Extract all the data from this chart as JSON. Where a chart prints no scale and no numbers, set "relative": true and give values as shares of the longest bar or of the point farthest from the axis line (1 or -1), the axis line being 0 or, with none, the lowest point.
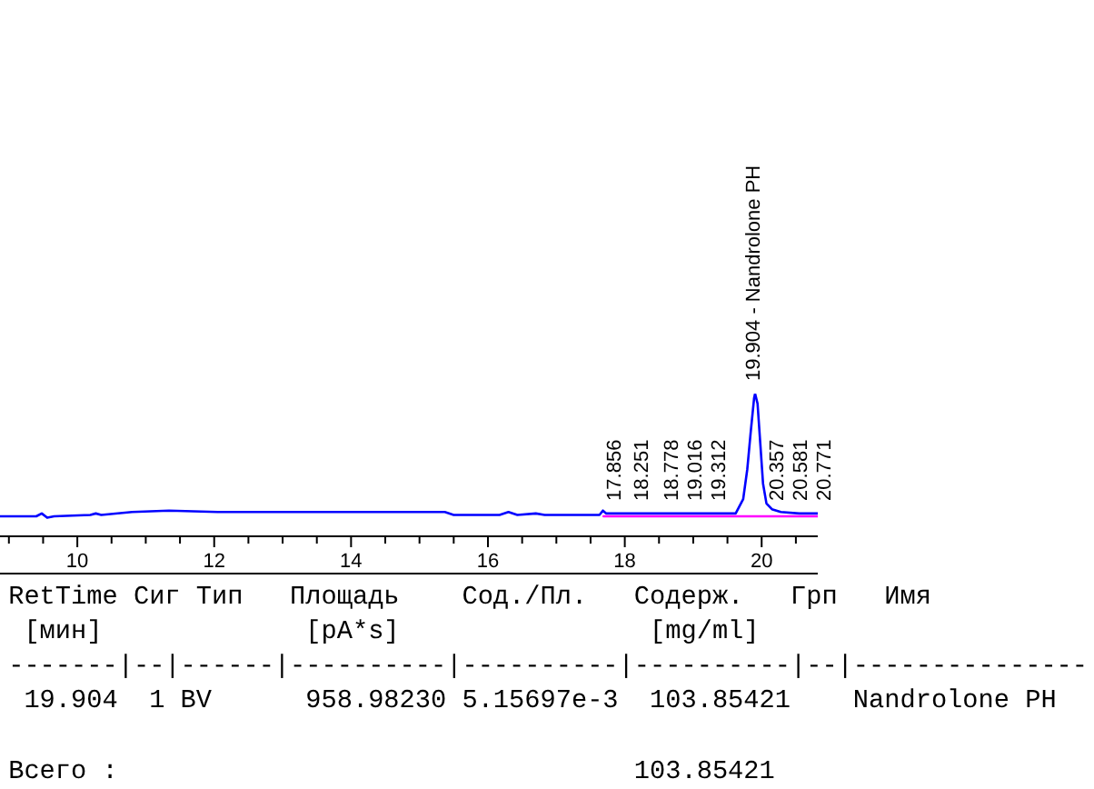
{
  "chart_data": {
    "type": "line",
    "relative": true,
    "x": [
      8.87,
      9.4,
      9.48,
      9.56,
      9.66,
      10.19,
      10.27,
      10.35,
      10.8,
      11.34,
      12.05,
      14.18,
      15.37,
      15.5,
      16.17,
      16.3,
      16.43,
      16.7,
      16.83,
      17.63,
      17.68,
      17.73,
      19.49,
      19.62,
      19.73,
      19.79,
      19.84,
      19.89,
      19.904,
      19.94,
      19.98,
      20.02,
      20.07,
      20.15,
      20.28,
      20.55,
      20.82
    ],
    "series": [
      {
        "color": "#0000ff",
        "values": [
          0.14,
          0.14,
          0.16,
          0.13,
          0.14,
          0.15,
          0.16,
          0.15,
          0.17,
          0.18,
          0.17,
          0.17,
          0.17,
          0.15,
          0.15,
          0.17,
          0.15,
          0.16,
          0.15,
          0.15,
          0.18,
          0.16,
          0.16,
          0.16,
          0.26,
          0.47,
          0.73,
          0.97,
          1,
          0.93,
          0.65,
          0.37,
          0.23,
          0.19,
          0.17,
          0.16,
          0.16
        ]
      },
      {
        "type": "line",
        "color": "#ff00ff",
        "x": [
          17.69,
          20.82
        ],
        "values": [
          0.14,
          0.14
        ]
      }
    ],
    "xlim": [
      8.87,
      20.82
    ],
    "xticks": [
      {
        "value": 9,
        "label": null
      },
      {
        "value": 9.5,
        "label": null
      },
      10,
      {
        "value": 10.5,
        "label": null
      },
      {
        "value": 11,
        "label": null
      },
      {
        "value": 11.5,
        "label": null
      },
      12,
      {
        "value": 12.5,
        "label": null
      },
      {
        "value": 13,
        "label": null
      },
      {
        "value": 13.5,
        "label": null
      },
      14,
      {
        "value": 14.5,
        "label": null
      },
      {
        "value": 15,
        "label": null
      },
      {
        "value": 15.5,
        "label": null
      },
      16,
      {
        "value": 16.5,
        "label": null
      },
      {
        "value": 17,
        "label": null
      },
      {
        "value": 17.5,
        "label": null
      },
      18,
      {
        "value": 18.5,
        "label": null
      },
      {
        "value": 19,
        "label": null
      },
      {
        "value": 19.5,
        "label": null
      },
      20,
      {
        "value": 20.5,
        "label": null
      }
    ],
    "annotations": [
      {
        "text": "17.856",
        "x": 17.856,
        "y": 0.16
      },
      {
        "text": "18.251",
        "x": 18.251,
        "y": 0.16
      },
      {
        "text": "18.778",
        "x": 18.778,
        "y": 0.16
      },
      {
        "text": "19.016",
        "x": 19.016,
        "y": 0.16
      },
      {
        "text": "19.312",
        "x": 19.312,
        "y": 0.16
      },
      {
        "text": "19.904 - Nandrolone PH",
        "x": 19.904,
        "y": 1
      },
      {
        "text": "20.357",
        "x": 20.357,
        "y": 0.16
      },
      {
        "text": "20.581",
        "x": 20.581,
        "y": 0.16
      },
      {
        "text": "20.771",
        "x": 20.771,
        "y": 0.16
      },
      "RetTime Сиг Тип   Площадь    Сод./Пл.   Содерж.   Грп   Имя",
      " [мин]             [pA*s]                [mg/ml]",
      "-------|--|------|----------|----------|----------|--|---------------",
      " 19.904  1 BV      958.98230 5.15697e-3  103.85421    Nandrolone PH",
      "Всего :                                 103.85421"
    ]
  }
}
